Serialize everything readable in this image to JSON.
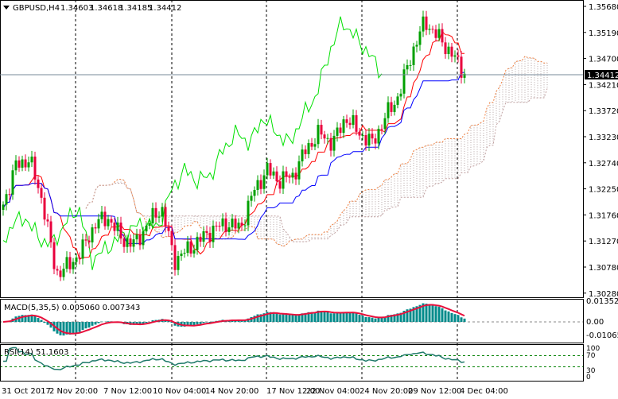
{
  "header": {
    "symbol": "GBPUSD,H4",
    "open": "1.34603",
    "high": "1.34618",
    "low": "1.34185",
    "close": "1.34412"
  },
  "price_axis": [
    "1.35680",
    "1.35190",
    "1.34700",
    "1.34210",
    "1.33720",
    "1.33230",
    "1.32740",
    "1.32250",
    "1.31760",
    "1.31270",
    "1.30780",
    "1.30280"
  ],
  "current_price_label": "1.34412",
  "macd": {
    "label": "MACD(5,35,5) 0.005060 0.007343",
    "axis": [
      "0.013526",
      "0.00",
      "-0.01065"
    ]
  },
  "rsi": {
    "label": "RSI(14) 51.1603",
    "axis": [
      "100",
      "70",
      "30",
      "0"
    ]
  },
  "time_axis": [
    "31 Oct 2017",
    "2 Nov 20:00",
    "7 Nov 12:00",
    "10 Nov 04:00",
    "14 Nov 20:00",
    "17 Nov 12:00",
    "22 Nov 04:00",
    "24 Nov 20:00",
    "29 Nov 12:00",
    "4 Dec 04:00"
  ],
  "colors": {
    "bull": "#00a000",
    "bear": "#e8003c",
    "tenkan": "#ff0000",
    "kijun": "#0000ff",
    "chikou": "#00e000",
    "span": "#f08040",
    "macd_hist": "#008b8b",
    "macd_signal": "#e8103c",
    "rsi": "#1f7a6a"
  },
  "chart_data": {
    "type": "candlestick",
    "title": "GBPUSD,H4",
    "ylim": [
      1.3028,
      1.3568
    ],
    "close_keypoints": [
      1.3195,
      1.327,
      1.328,
      1.32,
      1.3065,
      1.308,
      1.311,
      1.316,
      1.317,
      1.313,
      1.312,
      1.316,
      1.319,
      1.309,
      1.311,
      1.313,
      1.315,
      1.316,
      1.315,
      1.322,
      1.326,
      1.324,
      1.325,
      1.33,
      1.333,
      1.331,
      1.336,
      1.333,
      1.331,
      1.336,
      1.34,
      1.348,
      1.354,
      1.351,
      1.348,
      1.34412
    ],
    "candle_count": 146
  }
}
